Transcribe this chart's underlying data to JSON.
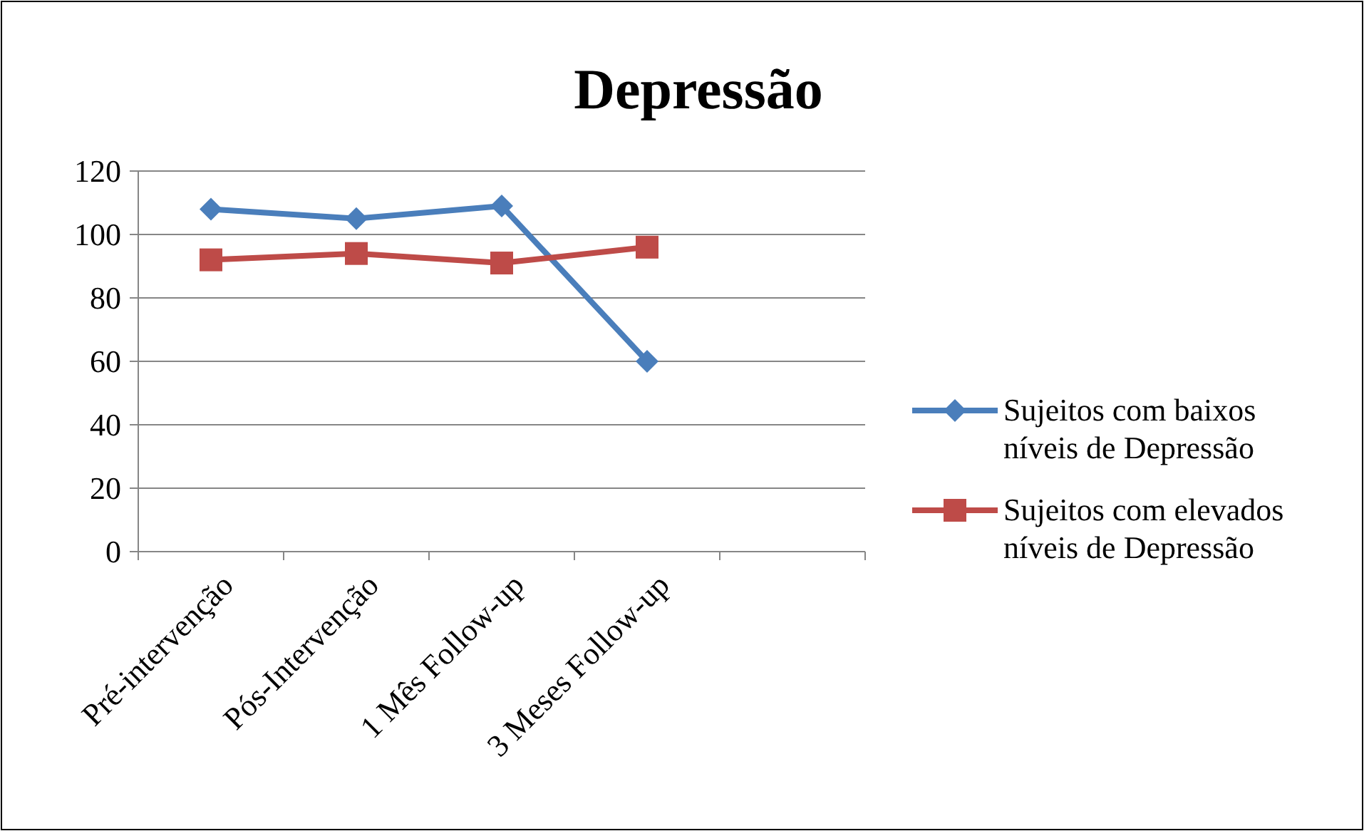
{
  "chart_data": {
    "type": "line",
    "title": "Depressão",
    "categories": [
      "Pré-intervenção",
      "Pós-Intervenção",
      "1 Mês Follow-up",
      "3 Meses Follow-up",
      null
    ],
    "series": [
      {
        "name": "Sujeitos com baixos níveis de Depressão",
        "color": "#4a7ebb",
        "marker": "diamond",
        "values": [
          108,
          105,
          109,
          60,
          null
        ]
      },
      {
        "name": "Sujeitos com elevados níveis de Depressão",
        "color": "#be4b48",
        "marker": "square",
        "values": [
          92,
          94,
          91,
          96,
          null
        ]
      }
    ],
    "ylim": [
      0,
      120
    ],
    "yticks": [
      0,
      20,
      40,
      60,
      80,
      100,
      120
    ],
    "grid": "y",
    "legend": "right",
    "line_style": "solid"
  }
}
